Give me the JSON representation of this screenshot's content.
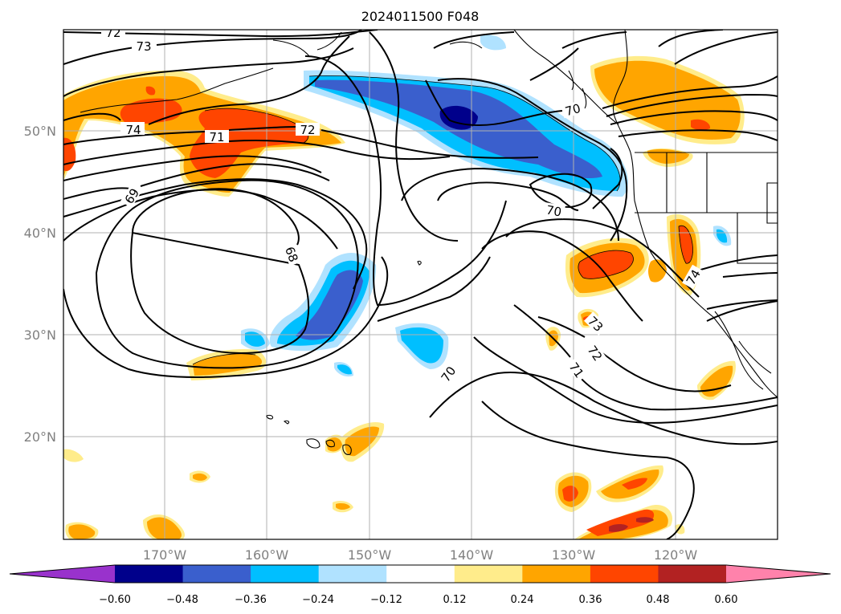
{
  "title": "2024011500 F048",
  "latitude_labels": [
    "50°N",
    "40°N",
    "30°N",
    "20°N"
  ],
  "longitude_labels": [
    "170°W",
    "160°W",
    "150°W",
    "140°W",
    "130°W",
    "120°W"
  ],
  "colorbar": {
    "ticks": [
      "−0.60",
      "−0.48",
      "−0.36",
      "−0.24",
      "−0.12",
      "0.12",
      "0.24",
      "0.36",
      "0.48",
      "0.60"
    ],
    "colors": [
      "#9932cc",
      "#00008b",
      "#3a5fcd",
      "#00bfff",
      "#b0e2ff",
      "#ffffff",
      "#ffec8b",
      "#ffa500",
      "#ff4500",
      "#b22222",
      "#ff82ab"
    ]
  },
  "contour_labels": [
    "72",
    "73",
    "74",
    "71",
    "72",
    "69",
    "68",
    "70",
    "70",
    "70",
    "73",
    "72",
    "71",
    "74"
  ]
}
